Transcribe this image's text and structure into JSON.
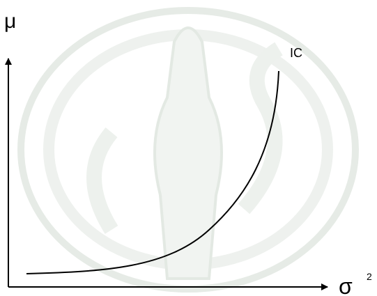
{
  "y_axis_label": "μ",
  "curve_label": "IC",
  "x_axis_label": "σ",
  "x_axis_superscript": "2"
}
